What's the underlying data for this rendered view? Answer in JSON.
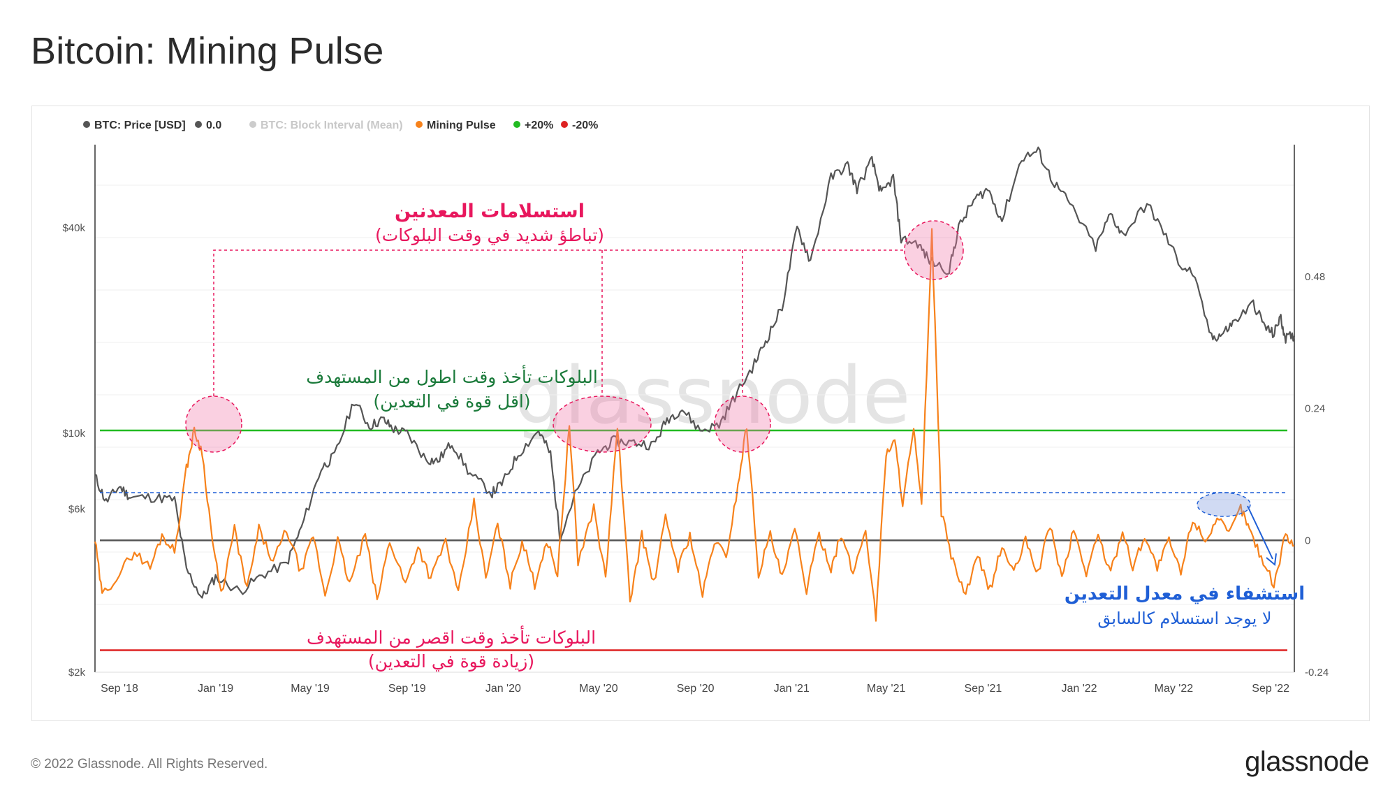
{
  "title": "Bitcoin: Mining Pulse",
  "footer": "© 2022 Glassnode. All Rights Reserved.",
  "brand": "glassnode",
  "watermark": "glassnode",
  "legend": [
    {
      "label": "BTC: Price [USD]",
      "color": "#555555",
      "faded": false
    },
    {
      "label": "0.0",
      "color": "#555555",
      "faded": false
    },
    {
      "label": "BTC: Block Interval (Mean)",
      "color": "#cccccc",
      "faded": true
    },
    {
      "label": "Mining Pulse",
      "color": "#f7821b",
      "faded": false
    },
    {
      "label": "+20%",
      "color": "#22bb22",
      "faded": false
    },
    {
      "label": "-20%",
      "color": "#dd2222",
      "faded": false
    }
  ],
  "chart_data": {
    "type": "line",
    "x_ticks": [
      "Sep '18",
      "Jan '19",
      "May '19",
      "Sep '19",
      "Jan '20",
      "May '20",
      "Sep '20",
      "Jan '21",
      "May '21",
      "Sep '21",
      "Jan '22",
      "May '22",
      "Sep '22"
    ],
    "x_range": [
      "2018-08-01",
      "2022-10-01"
    ],
    "y_left": {
      "scale": "log",
      "range": [
        2000,
        70000
      ],
      "ticks": [
        "$2k",
        "$6k",
        "$10k",
        "$40k"
      ],
      "tick_values": [
        2000,
        6000,
        10000,
        40000
      ]
    },
    "y_right": {
      "range": [
        -0.24,
        0.72
      ],
      "ticks": [
        "0.48",
        "0.24",
        "0",
        "-0.24"
      ],
      "tick_values": [
        0.48,
        0.24,
        0,
        -0.24
      ]
    },
    "reference_lines": [
      {
        "label": "+20%",
        "value": 0.2,
        "color": "#22bb22"
      },
      {
        "label": "0.0",
        "value": 0.0,
        "color": "#555555"
      },
      {
        "label": "-20%",
        "value": -0.2,
        "color": "#dd2222"
      }
    ],
    "series": [
      {
        "name": "BTC: Price [USD]",
        "axis": "left",
        "color": "#555555",
        "points": [
          [
            "2018-08-01",
            7500
          ],
          [
            "2018-08-15",
            6300
          ],
          [
            "2018-09-01",
            7000
          ],
          [
            "2018-09-15",
            6500
          ],
          [
            "2018-10-15",
            6500
          ],
          [
            "2018-11-10",
            6400
          ],
          [
            "2018-11-25",
            4000
          ],
          [
            "2018-12-15",
            3300
          ],
          [
            "2019-01-01",
            3800
          ],
          [
            "2019-02-01",
            3450
          ],
          [
            "2019-03-01",
            3850
          ],
          [
            "2019-04-01",
            4150
          ],
          [
            "2019-04-20",
            5300
          ],
          [
            "2019-05-15",
            7900
          ],
          [
            "2019-06-01",
            8600
          ],
          [
            "2019-06-26",
            12500
          ],
          [
            "2019-07-15",
            10500
          ],
          [
            "2019-08-01",
            11000
          ],
          [
            "2019-08-15",
            10300
          ],
          [
            "2019-09-01",
            10000
          ],
          [
            "2019-09-25",
            8400
          ],
          [
            "2019-10-10",
            8300
          ],
          [
            "2019-10-28",
            9400
          ],
          [
            "2019-11-20",
            7600
          ],
          [
            "2019-12-18",
            6700
          ],
          [
            "2020-01-01",
            7200
          ],
          [
            "2020-01-20",
            8700
          ],
          [
            "2020-02-15",
            10200
          ],
          [
            "2020-03-01",
            8700
          ],
          [
            "2020-03-13",
            5000
          ],
          [
            "2020-04-01",
            6600
          ],
          [
            "2020-04-30",
            8800
          ],
          [
            "2020-05-20",
            9500
          ],
          [
            "2020-06-15",
            9400
          ],
          [
            "2020-07-10",
            9250
          ],
          [
            "2020-07-27",
            11000
          ],
          [
            "2020-08-15",
            11800
          ],
          [
            "2020-09-07",
            10200
          ],
          [
            "2020-10-01",
            10600
          ],
          [
            "2020-10-21",
            12800
          ],
          [
            "2020-11-15",
            16000
          ],
          [
            "2020-12-01",
            19000
          ],
          [
            "2020-12-20",
            23500
          ],
          [
            "2021-01-08",
            40000
          ],
          [
            "2021-01-25",
            32000
          ],
          [
            "2021-02-20",
            56000
          ],
          [
            "2021-03-13",
            61000
          ],
          [
            "2021-03-25",
            52000
          ],
          [
            "2021-04-13",
            63000
          ],
          [
            "2021-04-25",
            50000
          ],
          [
            "2021-05-10",
            56000
          ],
          [
            "2021-05-20",
            37000
          ],
          [
            "2021-06-10",
            36000
          ],
          [
            "2021-06-25",
            32000
          ],
          [
            "2021-07-20",
            30000
          ],
          [
            "2021-08-01",
            40000
          ],
          [
            "2021-08-20",
            48000
          ],
          [
            "2021-09-07",
            52000
          ],
          [
            "2021-09-25",
            42000
          ],
          [
            "2021-10-20",
            64000
          ],
          [
            "2021-11-10",
            67000
          ],
          [
            "2021-11-28",
            55000
          ],
          [
            "2021-12-20",
            47000
          ],
          [
            "2022-01-22",
            35000
          ],
          [
            "2022-02-10",
            44000
          ],
          [
            "2022-02-25",
            38000
          ],
          [
            "2022-03-28",
            47000
          ],
          [
            "2022-04-15",
            40000
          ],
          [
            "2022-05-10",
            31000
          ],
          [
            "2022-05-25",
            29500
          ],
          [
            "2022-06-18",
            19000
          ],
          [
            "2022-07-01",
            19500
          ],
          [
            "2022-07-15",
            21000
          ],
          [
            "2022-08-10",
            24000
          ],
          [
            "2022-08-25",
            20500
          ],
          [
            "2022-09-05",
            19500
          ],
          [
            "2022-09-13",
            22000
          ],
          [
            "2022-09-20",
            19000
          ],
          [
            "2022-10-01",
            19300
          ]
        ]
      },
      {
        "name": "Mining Pulse",
        "axis": "right",
        "color": "#f7821b",
        "points": [
          [
            "2018-08-01",
            0.0
          ],
          [
            "2018-08-10",
            -0.1
          ],
          [
            "2018-09-01",
            -0.06
          ],
          [
            "2018-09-20",
            -0.02
          ],
          [
            "2018-10-10",
            -0.05
          ],
          [
            "2018-10-25",
            0.01
          ],
          [
            "2018-11-10",
            -0.02
          ],
          [
            "2018-11-25",
            0.13
          ],
          [
            "2018-12-05",
            0.2
          ],
          [
            "2018-12-15",
            0.16
          ],
          [
            "2018-12-28",
            0.0
          ],
          [
            "2019-01-08",
            -0.1
          ],
          [
            "2019-01-25",
            0.02
          ],
          [
            "2019-02-10",
            -0.09
          ],
          [
            "2019-02-25",
            0.02
          ],
          [
            "2019-03-15",
            -0.04
          ],
          [
            "2019-04-01",
            0.02
          ],
          [
            "2019-04-20",
            -0.06
          ],
          [
            "2019-05-05",
            0.01
          ],
          [
            "2019-05-20",
            -0.1
          ],
          [
            "2019-06-05",
            0.0
          ],
          [
            "2019-06-20",
            -0.08
          ],
          [
            "2019-07-10",
            0.01
          ],
          [
            "2019-07-25",
            -0.11
          ],
          [
            "2019-08-10",
            0.0
          ],
          [
            "2019-08-30",
            -0.08
          ],
          [
            "2019-09-15",
            -0.01
          ],
          [
            "2019-10-01",
            -0.07
          ],
          [
            "2019-10-20",
            0.0
          ],
          [
            "2019-11-05",
            -0.1
          ],
          [
            "2019-11-25",
            0.07
          ],
          [
            "2019-12-10",
            -0.07
          ],
          [
            "2019-12-25",
            0.03
          ],
          [
            "2020-01-10",
            -0.08
          ],
          [
            "2020-01-25",
            0.0
          ],
          [
            "2020-02-10",
            -0.08
          ],
          [
            "2020-02-25",
            0.0
          ],
          [
            "2020-03-10",
            -0.06
          ],
          [
            "2020-03-25",
            0.21
          ],
          [
            "2020-04-05",
            -0.04
          ],
          [
            "2020-04-25",
            0.06
          ],
          [
            "2020-05-10",
            -0.07
          ],
          [
            "2020-05-25",
            0.21
          ],
          [
            "2020-06-10",
            -0.11
          ],
          [
            "2020-06-25",
            0.01
          ],
          [
            "2020-07-10",
            -0.08
          ],
          [
            "2020-07-25",
            0.04
          ],
          [
            "2020-08-10",
            -0.05
          ],
          [
            "2020-08-25",
            0.01
          ],
          [
            "2020-09-10",
            -0.1
          ],
          [
            "2020-09-25",
            0.0
          ],
          [
            "2020-10-10",
            -0.03
          ],
          [
            "2020-10-25",
            0.1
          ],
          [
            "2020-11-05",
            0.21
          ],
          [
            "2020-11-20",
            -0.06
          ],
          [
            "2020-12-05",
            0.01
          ],
          [
            "2020-12-20",
            -0.07
          ],
          [
            "2021-01-05",
            0.02
          ],
          [
            "2021-01-20",
            -0.09
          ],
          [
            "2021-02-05",
            0.01
          ],
          [
            "2021-02-20",
            -0.05
          ],
          [
            "2021-03-05",
            0.01
          ],
          [
            "2021-03-20",
            -0.06
          ],
          [
            "2021-04-05",
            0.02
          ],
          [
            "2021-04-18",
            -0.14
          ],
          [
            "2021-05-01",
            0.16
          ],
          [
            "2021-05-12",
            0.18
          ],
          [
            "2021-05-22",
            0.07
          ],
          [
            "2021-06-05",
            0.2
          ],
          [
            "2021-06-15",
            0.06
          ],
          [
            "2021-06-28",
            0.56
          ],
          [
            "2021-07-10",
            0.05
          ],
          [
            "2021-07-25",
            -0.04
          ],
          [
            "2021-08-10",
            -0.1
          ],
          [
            "2021-08-25",
            -0.03
          ],
          [
            "2021-09-10",
            -0.09
          ],
          [
            "2021-09-25",
            -0.01
          ],
          [
            "2021-10-10",
            -0.06
          ],
          [
            "2021-10-25",
            0.0
          ],
          [
            "2021-11-10",
            -0.06
          ],
          [
            "2021-11-25",
            0.03
          ],
          [
            "2021-12-10",
            -0.07
          ],
          [
            "2021-12-25",
            0.02
          ],
          [
            "2022-01-10",
            -0.06
          ],
          [
            "2022-01-25",
            0.01
          ],
          [
            "2022-02-10",
            -0.06
          ],
          [
            "2022-02-25",
            0.02
          ],
          [
            "2022-03-10",
            -0.05
          ],
          [
            "2022-03-25",
            0.01
          ],
          [
            "2022-04-10",
            -0.05
          ],
          [
            "2022-04-25",
            0.0
          ],
          [
            "2022-05-10",
            -0.06
          ],
          [
            "2022-05-25",
            0.04
          ],
          [
            "2022-06-10",
            0.0
          ],
          [
            "2022-06-25",
            0.04
          ],
          [
            "2022-07-10",
            0.01
          ],
          [
            "2022-07-25",
            0.06
          ],
          [
            "2022-08-05",
            0.02
          ],
          [
            "2022-08-20",
            -0.03
          ],
          [
            "2022-09-05",
            -0.08
          ],
          [
            "2022-09-20",
            0.01
          ],
          [
            "2022-10-01",
            -0.01
          ]
        ]
      }
    ],
    "annotations": {
      "capitulation_title": "استسلامات المعدنين",
      "capitulation_sub": "(تباطؤ شديد في وقت البلوكات)",
      "slow_blocks_title": "البلوكات تأخذ وقت اطول من المستهدف",
      "slow_blocks_sub": "(اقل قوة في التعدين)",
      "fast_blocks_title": "البلوكات تأخذ وقت اقصر من المستهدف",
      "fast_blocks_sub": "(زيادة قوة في التعدين)",
      "recovery_title": "استشفاء في معدل التعدين",
      "recovery_sub": "لا يوجد استسلام كالسابق",
      "highlight_colors": {
        "capitulation": "#e8175d",
        "slow": "#1a7a3a",
        "recovery": "#1f5fd6"
      }
    }
  }
}
